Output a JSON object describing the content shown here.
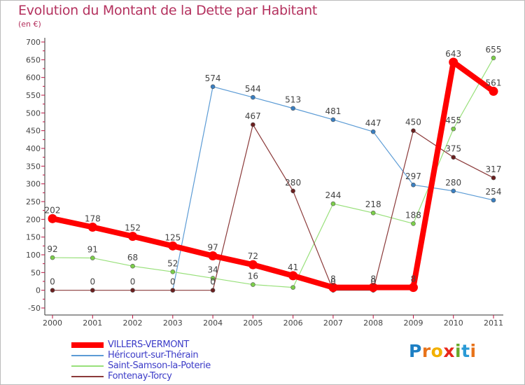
{
  "header": {
    "title": "Evolution du Montant de la Dette par Habitant",
    "subtitle": "(en €)"
  },
  "logo": {
    "letters": [
      "P",
      "r",
      "o",
      "x",
      "i",
      "t",
      "i"
    ],
    "colors": [
      "#1d7fc4",
      "#e8731a",
      "#f2b000",
      "#e8271b",
      "#6aaa2a",
      "#2a9ad6",
      "#e8731a"
    ]
  },
  "chart_data": {
    "type": "line",
    "title": "Evolution du Montant de la Dette par Habitant",
    "ylabel": "(en €)",
    "xlabel": "",
    "categories": [
      "2000",
      "2001",
      "2002",
      "2003",
      "2004",
      "2005",
      "2006",
      "2007",
      "2008",
      "2009",
      "2010",
      "2011"
    ],
    "y_ticks": [
      -50,
      0,
      50,
      100,
      150,
      200,
      250,
      300,
      350,
      400,
      450,
      500,
      550,
      600,
      650,
      700
    ],
    "ylim": [
      -50,
      700
    ],
    "grid": false,
    "legend_position": "bottom-left",
    "series": [
      {
        "name": "Héricourt-sur-Thérain",
        "color": "#5b9bd5",
        "point_color": "#3a7fc1",
        "labels": true,
        "values": [
          null,
          null,
          null,
          0,
          574,
          544,
          513,
          481,
          447,
          297,
          280,
          254
        ]
      },
      {
        "name": "Saint-Samson-la-Poterie",
        "color": "#98e07a",
        "point_color": "#7ccf4a",
        "labels": true,
        "values": [
          92,
          91,
          68,
          52,
          34,
          16,
          8,
          244,
          218,
          188,
          455,
          655
        ]
      },
      {
        "name": "Fontenay-Torcy",
        "color": "#8b3a3a",
        "point_color": "#6b1f1f",
        "labels": true,
        "values": [
          0,
          0,
          0,
          0,
          0,
          467,
          280,
          0,
          0,
          450,
          375,
          317
        ]
      },
      {
        "name": "VILLERS-VERMONT",
        "color": "#ff0000",
        "point_color": "#ff0000",
        "labels": true,
        "values": [
          202,
          178,
          152,
          125,
          97,
          72,
          41,
          8,
          8,
          8,
          643,
          561
        ]
      }
    ],
    "data_labels": [
      {
        "series": "Héricourt-sur-Thérain",
        "index": 4,
        "text": "574"
      },
      {
        "series": "Héricourt-sur-Thérain",
        "index": 5,
        "text": "544"
      },
      {
        "series": "Héricourt-sur-Thérain",
        "index": 6,
        "text": "513"
      },
      {
        "series": "Héricourt-sur-Thérain",
        "index": 7,
        "text": "481"
      },
      {
        "series": "Héricourt-sur-Thérain",
        "index": 8,
        "text": "447"
      },
      {
        "series": "Héricourt-sur-Thérain",
        "index": 9,
        "text": "297"
      },
      {
        "series": "Héricourt-sur-Thérain",
        "index": 10,
        "text": "280"
      },
      {
        "series": "Héricourt-sur-Thérain",
        "index": 11,
        "text": "254"
      },
      {
        "series": "Saint-Samson-la-Poterie",
        "index": 0,
        "text": "92"
      },
      {
        "series": "Saint-Samson-la-Poterie",
        "index": 1,
        "text": "91"
      },
      {
        "series": "Saint-Samson-la-Poterie",
        "index": 2,
        "text": "68"
      },
      {
        "series": "Saint-Samson-la-Poterie",
        "index": 3,
        "text": "52"
      },
      {
        "series": "Saint-Samson-la-Poterie",
        "index": 4,
        "text": "34"
      },
      {
        "series": "Saint-Samson-la-Poterie",
        "index": 5,
        "text": "16"
      },
      {
        "series": "Saint-Samson-la-Poterie",
        "index": 7,
        "text": "244"
      },
      {
        "series": "Saint-Samson-la-Poterie",
        "index": 8,
        "text": "218"
      },
      {
        "series": "Saint-Samson-la-Poterie",
        "index": 9,
        "text": "188"
      },
      {
        "series": "Saint-Samson-la-Poterie",
        "index": 10,
        "text": "455"
      },
      {
        "series": "Saint-Samson-la-Poterie",
        "index": 11,
        "text": "655"
      },
      {
        "series": "Fontenay-Torcy",
        "index": 0,
        "text": "0"
      },
      {
        "series": "Fontenay-Torcy",
        "index": 1,
        "text": "0"
      },
      {
        "series": "Fontenay-Torcy",
        "index": 2,
        "text": "0"
      },
      {
        "series": "Fontenay-Torcy",
        "index": 3,
        "text": "0"
      },
      {
        "series": "Fontenay-Torcy",
        "index": 4,
        "text": "0"
      },
      {
        "series": "Fontenay-Torcy",
        "index": 5,
        "text": "467"
      },
      {
        "series": "Fontenay-Torcy",
        "index": 6,
        "text": "280"
      },
      {
        "series": "Fontenay-Torcy",
        "index": 7,
        "text": "0"
      },
      {
        "series": "Fontenay-Torcy",
        "index": 8,
        "text": "0"
      },
      {
        "series": "Fontenay-Torcy",
        "index": 9,
        "text": "450"
      },
      {
        "series": "Fontenay-Torcy",
        "index": 10,
        "text": "375"
      },
      {
        "series": "Fontenay-Torcy",
        "index": 11,
        "text": "317"
      },
      {
        "series": "VILLERS-VERMONT",
        "index": 0,
        "text": "202"
      },
      {
        "series": "VILLERS-VERMONT",
        "index": 1,
        "text": "178"
      },
      {
        "series": "VILLERS-VERMONT",
        "index": 2,
        "text": "152"
      },
      {
        "series": "VILLERS-VERMONT",
        "index": 3,
        "text": "125"
      },
      {
        "series": "VILLERS-VERMONT",
        "index": 4,
        "text": "97"
      },
      {
        "series": "VILLERS-VERMONT",
        "index": 5,
        "text": "72"
      },
      {
        "series": "VILLERS-VERMONT",
        "index": 6,
        "text": "41"
      },
      {
        "series": "VILLERS-VERMONT",
        "index": 7,
        "text": "8"
      },
      {
        "series": "VILLERS-VERMONT",
        "index": 8,
        "text": "8"
      },
      {
        "series": "VILLERS-VERMONT",
        "index": 9,
        "text": "8"
      },
      {
        "series": "VILLERS-VERMONT",
        "index": 10,
        "text": "643"
      },
      {
        "series": "VILLERS-VERMONT",
        "index": 11,
        "text": "561"
      }
    ],
    "legend": [
      {
        "label": "VILLERS-VERMONT",
        "color": "#ff0000"
      },
      {
        "label": "Héricourt-sur-Thérain",
        "color": "#5b9bd5"
      },
      {
        "label": "Saint-Samson-la-Poterie",
        "color": "#98e07a"
      },
      {
        "label": "Fontenay-Torcy",
        "color": "#8b3a3a"
      }
    ]
  }
}
